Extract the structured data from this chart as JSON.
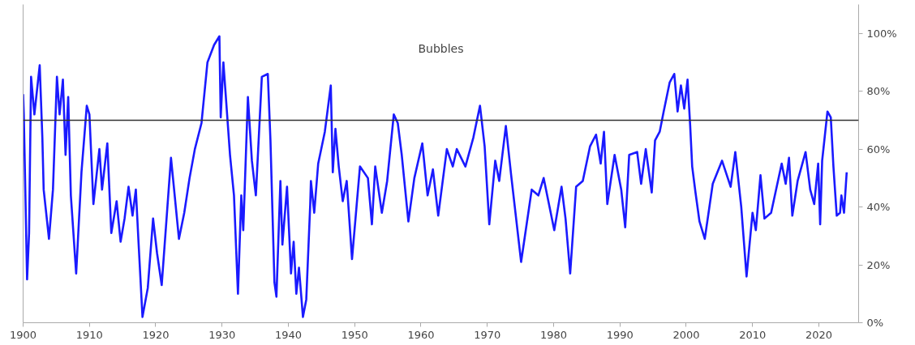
{
  "chart_data": {
    "type": "line",
    "x": [
      1900,
      1900.1,
      1900.6,
      1900.9,
      1901.2,
      1901.7,
      1902.5,
      1902.9,
      1903.1,
      1903.9,
      1904.5,
      1905.1,
      1905.5,
      1906.0,
      1906.4,
      1906.8,
      1907.2,
      1908.0,
      1908.8,
      1909.6,
      1910.0,
      1910.6,
      1911.5,
      1911.9,
      1912.7,
      1913.3,
      1914.1,
      1914.7,
      1915.3,
      1915.9,
      1916.5,
      1917.0,
      1917.4,
      1918.0,
      1918.8,
      1919.6,
      1920.2,
      1920.9,
      1922.3,
      1923.5,
      1924.3,
      1925.1,
      1925.9,
      1926.9,
      1927.8,
      1928.8,
      1929.6,
      1929.8,
      1930.2,
      1931.2,
      1931.8,
      1932.4,
      1932.9,
      1933.2,
      1933.9,
      1934.5,
      1935.1,
      1936.0,
      1936.9,
      1937.3,
      1937.9,
      1938.2,
      1938.8,
      1939.1,
      1939.8,
      1940.4,
      1940.8,
      1941.2,
      1941.6,
      1942.2,
      1942.7,
      1943.3,
      1943.4,
      1943.9,
      1944.5,
      1945.5,
      1946.4,
      1946.7,
      1947.1,
      1947.6,
      1948.2,
      1948.8,
      1949.6,
      1950.8,
      1952.0,
      1952.6,
      1953.1,
      1954.1,
      1954.9,
      1955.9,
      1956.5,
      1957.1,
      1958.1,
      1959.0,
      1960.2,
      1961.0,
      1961.8,
      1962.6,
      1963.9,
      1964.8,
      1965.4,
      1966.7,
      1967.9,
      1968.9,
      1969.6,
      1970.3,
      1971.2,
      1971.8,
      1972.8,
      1973.6,
      1975.1,
      1976.7,
      1977.7,
      1978.5,
      1980.1,
      1981.2,
      1981.8,
      1982.5,
      1983.4,
      1984.4,
      1985.5,
      1986.4,
      1987.1,
      1987.6,
      1988.1,
      1989.2,
      1990.2,
      1990.8,
      1991.4,
      1992.6,
      1993.2,
      1993.9,
      1994.8,
      1995.3,
      1996.0,
      1996.6,
      1997.5,
      1998.2,
      1998.7,
      1999.2,
      1999.7,
      2000.2,
      2000.6,
      2000.9,
      2001.4,
      2002.0,
      2002.8,
      2004.0,
      2005.4,
      2006.7,
      2007.4,
      2008.3,
      2009.1,
      2010.0,
      2010.5,
      2011.2,
      2011.8,
      2012.8,
      2014.4,
      2015.0,
      2015.5,
      2016.0,
      2016.8,
      2018.0,
      2018.7,
      2019.3,
      2019.9,
      2020.2,
      2020.5,
      2021.3,
      2021.8,
      2022.2,
      2022.7,
      2023.2,
      2023.4,
      2023.8,
      2024.2
    ],
    "series": [
      {
        "color": "#1a1aff",
        "values": [
          79,
          72,
          15,
          31,
          85,
          72,
          89,
          64,
          46,
          29,
          46,
          85,
          72,
          84,
          58,
          78,
          44,
          17,
          52,
          75,
          72,
          41,
          60,
          46,
          62,
          31,
          42,
          28,
          36,
          47,
          37,
          46,
          28,
          2,
          12,
          36,
          24,
          13,
          57,
          29,
          38,
          50,
          60,
          69,
          90,
          96,
          99,
          71,
          90,
          58,
          44,
          10,
          44,
          32,
          78,
          56,
          44,
          85,
          86,
          63,
          14,
          9,
          49,
          27,
          47,
          17,
          28,
          10,
          19,
          2,
          8,
          41,
          49,
          38,
          55,
          66,
          82,
          52,
          67,
          54,
          42,
          49,
          22,
          54,
          50,
          34,
          54,
          38,
          49,
          72,
          69,
          58,
          35,
          50,
          62,
          44,
          53,
          37,
          60,
          54,
          60,
          54,
          64,
          75,
          61,
          34,
          56,
          49,
          68,
          51,
          21,
          46,
          44,
          50,
          32,
          47,
          36,
          17,
          47,
          49,
          61,
          65,
          55,
          66,
          41,
          58,
          46,
          33,
          58,
          59,
          48,
          60,
          45,
          63,
          66,
          73,
          83,
          86,
          73,
          82,
          74,
          84,
          68,
          54,
          45,
          35,
          29,
          48,
          56,
          47,
          59,
          40,
          16,
          38,
          32,
          51,
          36,
          38,
          55,
          48,
          57,
          37,
          49,
          59,
          46,
          41,
          55,
          34,
          56,
          73,
          71,
          54,
          37,
          38,
          44,
          38,
          52
        ]
      }
    ],
    "xlim": [
      1900,
      2026
    ],
    "ylim": [
      0,
      110
    ],
    "xticks": [
      1900,
      1910,
      1920,
      1930,
      1940,
      1950,
      1960,
      1970,
      1980,
      1990,
      2000,
      2010,
      2020
    ],
    "yticks": [
      {
        "value": 0,
        "label": "0%"
      },
      {
        "value": 20,
        "label": "20%"
      },
      {
        "value": 40,
        "label": "40%"
      },
      {
        "value": 60,
        "label": "60%"
      },
      {
        "value": 80,
        "label": "80%"
      },
      {
        "value": 100,
        "label": "100%"
      }
    ],
    "ref_lines": [
      {
        "axis": "y",
        "value": 70,
        "label": "Bubbles",
        "color": "#333333"
      }
    ],
    "grid": false,
    "marker": "none",
    "line_style": "solid"
  }
}
